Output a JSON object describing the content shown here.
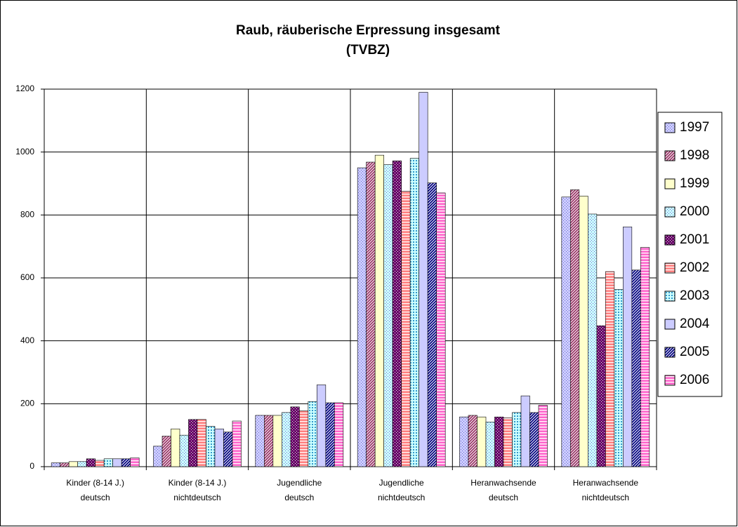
{
  "chart_data": {
    "type": "bar",
    "title": [
      "Raub, räuberische Erpressung insgesamt",
      "(TVBZ)"
    ],
    "categories": [
      [
        "Kinder (8-14 J.)",
        "deutsch"
      ],
      [
        "Kinder (8-14 J.)",
        "nichtdeutsch"
      ],
      [
        "Jugendliche",
        "deutsch"
      ],
      [
        "Jugendliche",
        "nichtdeutsch"
      ],
      [
        "Heranwachsende",
        "deutsch"
      ],
      [
        "Heranwachsende",
        "nichtdeutsch"
      ]
    ],
    "series": [
      {
        "name": "1997",
        "color": "#ccccff",
        "pattern": "dots",
        "values": [
          12,
          65,
          163,
          950,
          158,
          857
        ]
      },
      {
        "name": "1998",
        "color": "#993366",
        "pattern": "diagonal",
        "values": [
          12,
          97,
          163,
          968,
          163,
          880
        ]
      },
      {
        "name": "1999",
        "color": "#ffffcc",
        "pattern": "solid",
        "values": [
          16,
          120,
          163,
          990,
          158,
          860
        ]
      },
      {
        "name": "2000",
        "color": "#ccffff",
        "pattern": "dots",
        "values": [
          16,
          100,
          172,
          960,
          142,
          803
        ]
      },
      {
        "name": "2001",
        "color": "#660066",
        "pattern": "dots",
        "values": [
          25,
          150,
          190,
          972,
          158,
          448
        ]
      },
      {
        "name": "2002",
        "color": "#ff8080",
        "pattern": "horizontal",
        "values": [
          20,
          150,
          177,
          875,
          155,
          620
        ]
      },
      {
        "name": "2003",
        "color": "#ccffff",
        "pattern": "checker",
        "values": [
          25,
          128,
          207,
          980,
          172,
          563
        ]
      },
      {
        "name": "2004",
        "color": "#ccccff",
        "pattern": "solid",
        "values": [
          25,
          120,
          260,
          1190,
          225,
          762
        ]
      },
      {
        "name": "2005",
        "color": "#000080",
        "pattern": "diagonal",
        "values": [
          25,
          110,
          203,
          902,
          172,
          625
        ]
      },
      {
        "name": "2006",
        "color": "#ff66cc",
        "pattern": "horizontal",
        "values": [
          28,
          145,
          203,
          870,
          195,
          697
        ]
      }
    ],
    "ylim": [
      0,
      1200
    ],
    "yticks": [
      0,
      200,
      400,
      600,
      800,
      1000,
      1200
    ],
    "grid": true,
    "legend": "right"
  }
}
